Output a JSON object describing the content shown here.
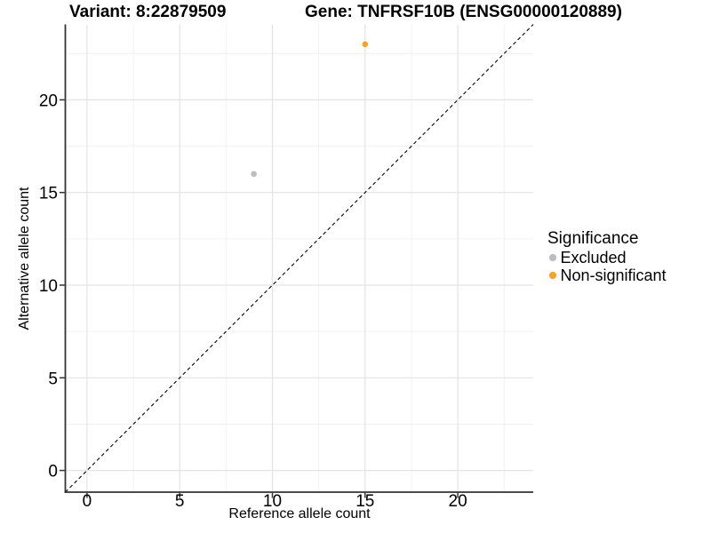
{
  "chart_data": {
    "type": "scatter",
    "titles": [
      "Variant: 8:22879509",
      "Gene: TNFRSF10B (ENSG00000120889)"
    ],
    "xlabel": "Reference allele count",
    "ylabel": "Alternative allele count",
    "xlim": [
      -1.17,
      24.07
    ],
    "ylim": [
      -1.17,
      24.07
    ],
    "xticks": [
      0,
      5,
      10,
      15,
      20
    ],
    "yticks": [
      0,
      5,
      10,
      15,
      20
    ],
    "minor_ticks": [
      2.5,
      7.5,
      12.5,
      17.5,
      22.5
    ],
    "grid": "major and minor gridlines, white background",
    "identity_line": {
      "slope": 1,
      "intercept": 0,
      "style": "dashed",
      "color": "#000000"
    },
    "series": [
      {
        "name": "Excluded",
        "color": "#BDBDBD",
        "points": [
          {
            "x": 9,
            "y": 16
          }
        ]
      },
      {
        "name": "Non-significant",
        "color": "#FCA121",
        "points": [
          {
            "x": 15,
            "y": 23
          }
        ]
      }
    ],
    "legend": {
      "title": "Significance",
      "position": "right"
    }
  }
}
